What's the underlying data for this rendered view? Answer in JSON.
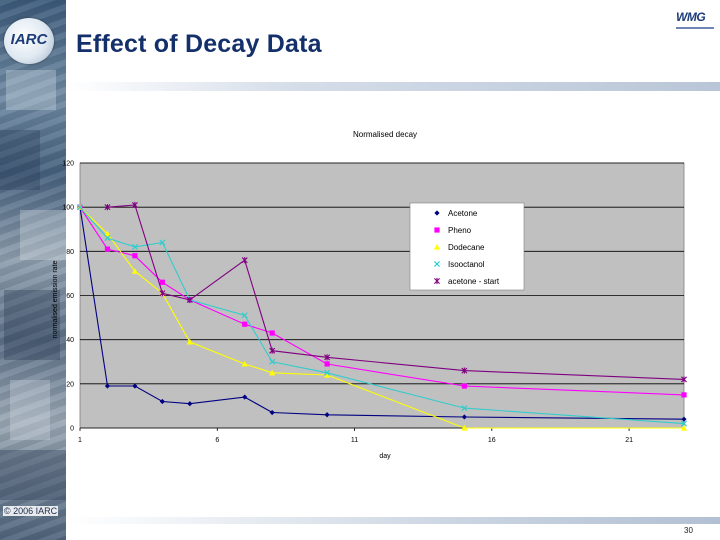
{
  "slide": {
    "title": "Effect of Decay Data",
    "copyright": "© 2006 IARC",
    "page_number": "30",
    "logo_left": "IARC",
    "logo_right": "WMG"
  },
  "colors": {
    "title": "#14306b",
    "plot_bg": "#c0c0c0",
    "acetone": "#000080",
    "pheno": "#ff00ff",
    "dodecane": "#ffff00",
    "isooctanol": "#33cccc",
    "acetone_start": "#800080"
  },
  "chart_data": {
    "type": "line",
    "title": "Normalised decay",
    "xlabel": "day",
    "ylabel": "normalised emission rate",
    "xlim": [
      1,
      23
    ],
    "ylim": [
      0,
      120
    ],
    "x_ticks": [
      1,
      6,
      11,
      16,
      21
    ],
    "y_ticks": [
      0,
      20,
      40,
      60,
      80,
      100,
      120
    ],
    "grid": "horizontal",
    "legend_position": "top-right",
    "series": [
      {
        "name": "Acetone",
        "marker": "diamond",
        "color": "#000080",
        "x": [
          1,
          2,
          3,
          4,
          5,
          7,
          8,
          10,
          15,
          23
        ],
        "y": [
          100,
          19,
          19,
          12,
          11,
          14,
          7,
          6,
          5,
          4
        ]
      },
      {
        "name": "Pheno",
        "marker": "square",
        "color": "#ff00ff",
        "x": [
          1,
          2,
          3,
          4,
          5,
          7,
          8,
          10,
          15,
          23
        ],
        "y": [
          100,
          81,
          78,
          66,
          58,
          47,
          43,
          29,
          19,
          15
        ]
      },
      {
        "name": "Dodecane",
        "marker": "triangle",
        "color": "#ffff00",
        "x": [
          1,
          2,
          3,
          4,
          5,
          7,
          8,
          10,
          15,
          23
        ],
        "y": [
          100,
          88,
          71,
          61,
          39,
          29,
          25,
          24,
          0,
          0
        ]
      },
      {
        "name": "Isooctanol",
        "marker": "x",
        "color": "#33cccc",
        "x": [
          1,
          2,
          3,
          4,
          5,
          7,
          8,
          10,
          15,
          23
        ],
        "y": [
          100,
          86,
          82,
          84,
          58,
          51,
          30,
          25,
          9,
          2
        ]
      },
      {
        "name": "acetone - start",
        "marker": "star",
        "color": "#800080",
        "x": [
          2,
          3,
          4,
          5,
          7,
          8,
          10,
          15,
          23
        ],
        "y": [
          100,
          101,
          61,
          58,
          76,
          35,
          32,
          26,
          22
        ]
      }
    ]
  }
}
